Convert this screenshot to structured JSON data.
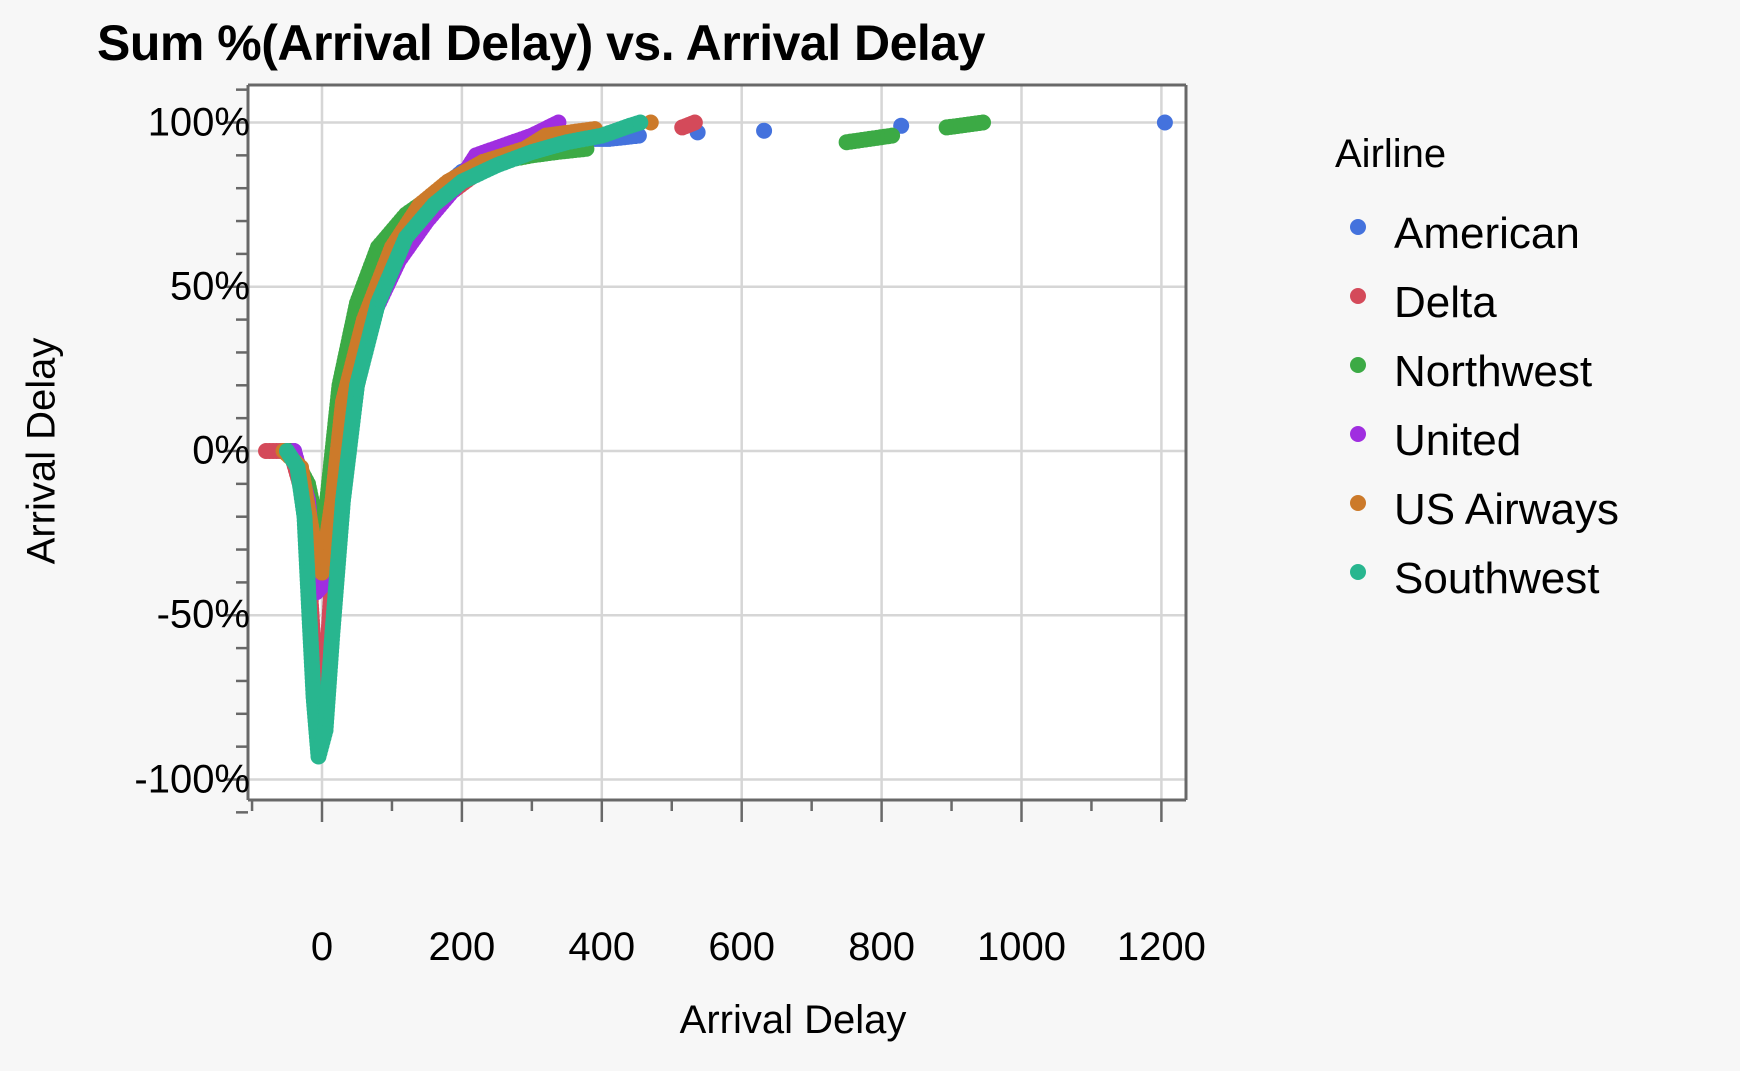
{
  "chart_data": {
    "type": "scatter",
    "title": "Sum %(Arrival Delay) vs. Arrival Delay",
    "xlabel": "Arrival Delay",
    "ylabel": "Arrival Delay",
    "xlim": [
      -95,
      1240
    ],
    "ylim": [
      -110,
      112
    ],
    "x_ticks": [
      0,
      200,
      400,
      600,
      800,
      1000,
      1200
    ],
    "x_tick_labels": [
      "0",
      "200",
      "400",
      "600",
      "800",
      "1000",
      "1200"
    ],
    "y_ticks": [
      100,
      50,
      0,
      -50,
      -100
    ],
    "y_tick_labels": [
      "100%",
      "50%",
      "0%",
      "-50%",
      "-100%"
    ],
    "grid": true,
    "legend_title": "Airline",
    "legend_position": "right",
    "series": [
      {
        "name": "American",
        "color": "#4472dd",
        "points": [
          [
            -40,
            0
          ],
          [
            -20,
            -20
          ],
          [
            -8,
            -40
          ],
          [
            0,
            -38
          ],
          [
            20,
            5
          ],
          [
            50,
            35
          ],
          [
            100,
            60
          ],
          [
            150,
            76
          ],
          [
            200,
            85
          ],
          [
            250,
            90
          ],
          [
            300,
            93
          ],
          [
            350,
            95
          ],
          [
            410,
            95
          ],
          [
            453,
            96
          ],
          [
            537,
            97
          ],
          [
            632,
            97.5
          ],
          [
            828,
            99
          ],
          [
            1205,
            100
          ]
        ]
      },
      {
        "name": "Delta",
        "color": "#d44a5a",
        "points": [
          [
            -80,
            0
          ],
          [
            -45,
            0
          ],
          [
            -25,
            -15
          ],
          [
            -12,
            -60
          ],
          [
            -5,
            -85
          ],
          [
            5,
            -70
          ],
          [
            20,
            -20
          ],
          [
            40,
            10
          ],
          [
            70,
            40
          ],
          [
            100,
            58
          ],
          [
            140,
            72
          ],
          [
            180,
            78
          ],
          [
            230,
            86
          ],
          [
            300,
            92
          ],
          [
            365,
            95
          ],
          [
            515,
            98.5
          ],
          [
            533,
            100
          ]
        ]
      },
      {
        "name": "Northwest",
        "color": "#3caa45",
        "points": [
          [
            -45,
            0
          ],
          [
            -20,
            -10
          ],
          [
            -5,
            -25
          ],
          [
            5,
            -20
          ],
          [
            25,
            20
          ],
          [
            50,
            45
          ],
          [
            80,
            62
          ],
          [
            120,
            72
          ],
          [
            160,
            78
          ],
          [
            200,
            84
          ],
          [
            250,
            88
          ],
          [
            300,
            90
          ],
          [
            335,
            91
          ],
          [
            378,
            92
          ],
          [
            750,
            94
          ],
          [
            815,
            96
          ],
          [
            893,
            98.5
          ],
          [
            945,
            100
          ]
        ]
      },
      {
        "name": "United",
        "color": "#a02ee0",
        "points": [
          [
            -40,
            0
          ],
          [
            -20,
            -15
          ],
          [
            -8,
            -43
          ],
          [
            5,
            -40
          ],
          [
            20,
            -5
          ],
          [
            40,
            20
          ],
          [
            70,
            40
          ],
          [
            110,
            58
          ],
          [
            150,
            70
          ],
          [
            190,
            80
          ],
          [
            220,
            90
          ],
          [
            260,
            93
          ],
          [
            300,
            96
          ],
          [
            338,
            100
          ]
        ]
      },
      {
        "name": "US Airways",
        "color": "#cc7a2a",
        "points": [
          [
            -55,
            0
          ],
          [
            -30,
            -5
          ],
          [
            -10,
            -30
          ],
          [
            0,
            -37
          ],
          [
            15,
            -15
          ],
          [
            30,
            15
          ],
          [
            60,
            40
          ],
          [
            100,
            62
          ],
          [
            140,
            75
          ],
          [
            180,
            82
          ],
          [
            230,
            88
          ],
          [
            290,
            92
          ],
          [
            320,
            96
          ],
          [
            390,
            98
          ],
          [
            470,
            100
          ]
        ]
      },
      {
        "name": "Southwest",
        "color": "#28b68f",
        "points": [
          [
            -50,
            0
          ],
          [
            -35,
            -5
          ],
          [
            -25,
            -20
          ],
          [
            -18,
            -50
          ],
          [
            -12,
            -75
          ],
          [
            -5,
            -93
          ],
          [
            5,
            -85
          ],
          [
            15,
            -55
          ],
          [
            30,
            -15
          ],
          [
            50,
            20
          ],
          [
            80,
            45
          ],
          [
            120,
            65
          ],
          [
            160,
            75
          ],
          [
            200,
            82
          ],
          [
            250,
            87
          ],
          [
            300,
            91
          ],
          [
            350,
            94
          ],
          [
            400,
            96
          ],
          [
            440,
            99
          ],
          [
            455,
            100
          ]
        ]
      }
    ]
  },
  "legend": {
    "title": "Airline",
    "items": [
      {
        "label": "American",
        "color": "#4472dd"
      },
      {
        "label": "Delta",
        "color": "#d44a5a"
      },
      {
        "label": "Northwest",
        "color": "#3caa45"
      },
      {
        "label": "United",
        "color": "#a02ee0"
      },
      {
        "label": "US Airways",
        "color": "#cc7a2a"
      },
      {
        "label": "Southwest",
        "color": "#28b68f"
      }
    ]
  }
}
